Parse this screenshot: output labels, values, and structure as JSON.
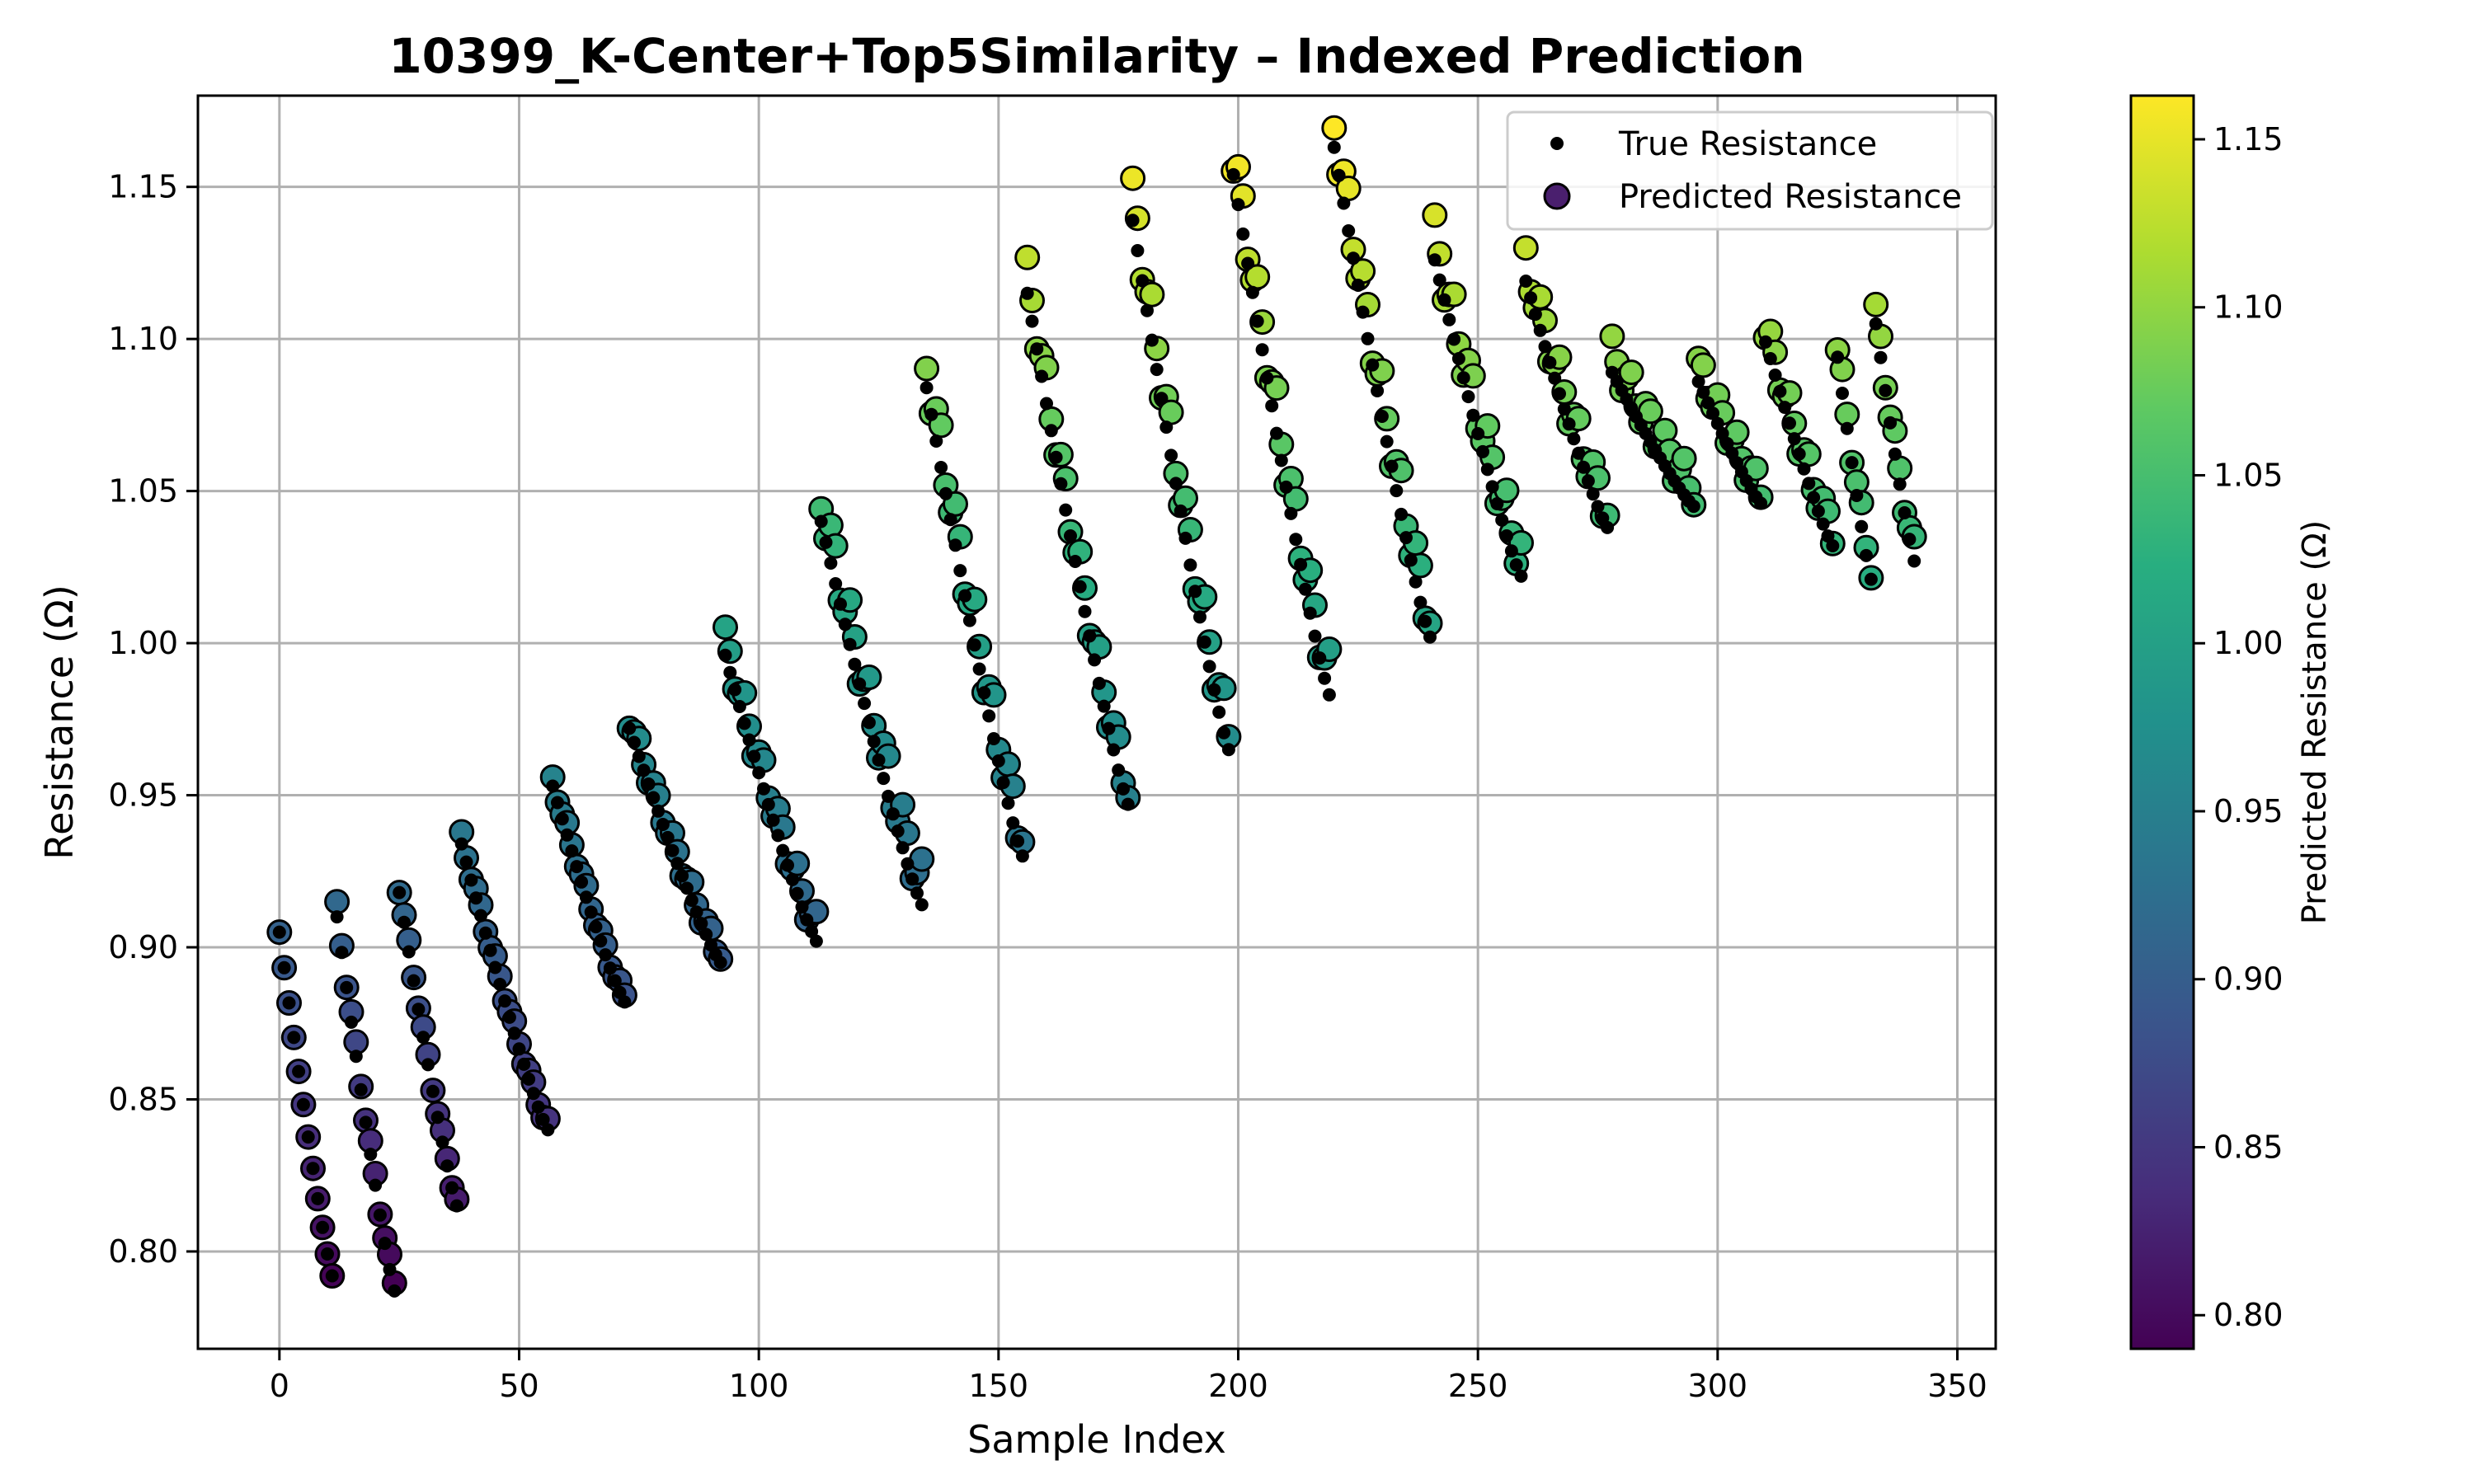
{
  "chart_data": {
    "type": "scatter",
    "title": "10399_K-Center+Top5Similarity – Indexed Prediction",
    "xlabel": "Sample Index",
    "ylabel": "Resistance (Ω)",
    "xlim": [
      -17,
      358
    ],
    "ylim": [
      0.768,
      1.18
    ],
    "xticks": [
      0,
      50,
      100,
      150,
      200,
      250,
      300,
      350
    ],
    "yticks": [
      0.8,
      0.85,
      0.9,
      0.95,
      1.0,
      1.05,
      1.1,
      1.15
    ],
    "xtick_labels": [
      "0",
      "50",
      "100",
      "150",
      "200",
      "250",
      "300",
      "350"
    ],
    "ytick_labels": [
      "0.80",
      "0.85",
      "0.90",
      "0.95",
      "1.00",
      "1.05",
      "1.10",
      "1.15"
    ],
    "grid": true,
    "legend": {
      "placement": "upper right",
      "entries": [
        {
          "label": "True Resistance",
          "color": "#000000"
        },
        {
          "label": "Predicted Resistance",
          "color": "#4a1f6e"
        }
      ]
    },
    "colorbar": {
      "label": "Predicted Resistance (Ω)",
      "colormap": "viridis",
      "range": [
        0.79,
        1.163
      ],
      "ticks": [
        0.8,
        0.85,
        0.9,
        0.95,
        1.0,
        1.05,
        1.1,
        1.15
      ],
      "tick_labels": [
        "0.80",
        "0.85",
        "0.90",
        "0.95",
        "1.00",
        "1.05",
        "1.10",
        "1.15"
      ]
    },
    "segments": [
      {
        "start": 0,
        "end": 12,
        "peak": 0.905,
        "low": 0.792,
        "pred_bias": 0.0
      },
      {
        "start": 12,
        "end": 25,
        "peak": 0.91,
        "low": 0.787,
        "pred_bias": 0.005
      },
      {
        "start": 25,
        "end": 38,
        "peak": 0.918,
        "low": 0.815,
        "pred_bias": 0.004
      },
      {
        "start": 38,
        "end": 57,
        "peak": 0.934,
        "low": 0.84,
        "pred_bias": 0.004
      },
      {
        "start": 57,
        "end": 73,
        "peak": 0.953,
        "low": 0.882,
        "pred_bias": 0.004
      },
      {
        "start": 73,
        "end": 93,
        "peak": 0.972,
        "low": 0.895,
        "pred_bias": 0.006
      },
      {
        "start": 93,
        "end": 113,
        "peak": 0.996,
        "low": 0.902,
        "pred_bias": 0.01
      },
      {
        "start": 113,
        "end": 135,
        "peak": 1.04,
        "low": 0.914,
        "pred_bias": 0.015
      },
      {
        "start": 135,
        "end": 156,
        "peak": 1.084,
        "low": 0.93,
        "pred_bias": 0.015
      },
      {
        "start": 156,
        "end": 178,
        "peak": 1.115,
        "low": 0.947,
        "pred_bias": 0.012
      },
      {
        "start": 178,
        "end": 199,
        "peak": 1.139,
        "low": 0.965,
        "pred_bias": 0.015
      },
      {
        "start": 199,
        "end": 220,
        "peak": 1.154,
        "low": 0.983,
        "pred_bias": 0.015
      },
      {
        "start": 220,
        "end": 241,
        "peak": 1.163,
        "low": 1.002,
        "pred_bias": 0.015
      },
      {
        "start": 241,
        "end": 260,
        "peak": 1.126,
        "low": 1.022,
        "pred_bias": 0.015
      },
      {
        "start": 260,
        "end": 278,
        "peak": 1.119,
        "low": 1.038,
        "pred_bias": 0.012
      },
      {
        "start": 278,
        "end": 296,
        "peak": 1.089,
        "low": 1.045,
        "pred_bias": 0.012
      },
      {
        "start": 296,
        "end": 310,
        "peak": 1.086,
        "low": 1.046,
        "pred_bias": 0.01
      },
      {
        "start": 310,
        "end": 325,
        "peak": 1.099,
        "low": 1.032,
        "pred_bias": 0.01
      },
      {
        "start": 325,
        "end": 333,
        "peak": 1.094,
        "low": 1.021,
        "pred_bias": 0.008
      },
      {
        "start": 333,
        "end": 342,
        "peak": 1.105,
        "low": 1.027,
        "pred_bias": 0.008
      }
    ]
  }
}
